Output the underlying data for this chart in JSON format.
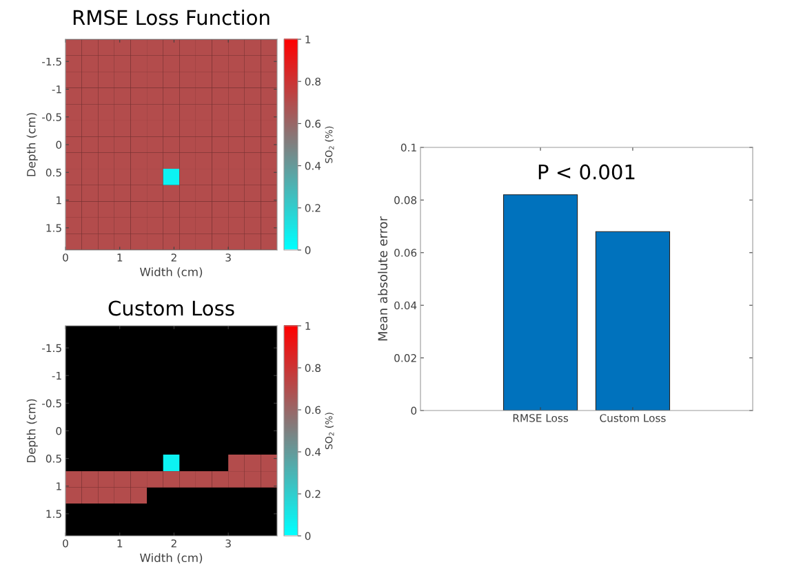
{
  "chart_data": [
    {
      "type": "heatmap",
      "title": "RMSE Loss Function",
      "xlabel": "Width (cm)",
      "ylabel": "Depth (cm)",
      "clabel": "SO$_{2}$ (%)",
      "xlim": [
        0,
        3.9
      ],
      "xticks": [
        0,
        1,
        2,
        3
      ],
      "ylim": [
        1.9,
        -1.9
      ],
      "yticks": [
        -1.5,
        -1,
        -0.5,
        0,
        0.5,
        1,
        1.5
      ],
      "clim": [
        0,
        1
      ],
      "cticks": [
        0,
        0.2,
        0.4,
        0.6,
        0.8,
        1
      ],
      "colors": [
        "#00ffff",
        "#808080",
        "#ff0000"
      ],
      "x": [
        0.15,
        0.45,
        0.75,
        1.05,
        1.35,
        1.65,
        1.95,
        2.25,
        2.55,
        2.85,
        3.15,
        3.45,
        3.75
      ],
      "y": [
        -1.75,
        -1.46,
        -1.17,
        -0.88,
        -0.58,
        -0.29,
        0,
        0.29,
        0.58,
        0.88,
        1.17,
        1.46,
        1.75
      ],
      "cells": [
        [
          0.7,
          0.7,
          0.7,
          0.7,
          0.7,
          0.7,
          0.7,
          0.7,
          0.7,
          0.7,
          0.7,
          0.7,
          0.7
        ],
        [
          0.7,
          0.7,
          0.7,
          0.7,
          0.7,
          0.7,
          0.7,
          0.7,
          0.7,
          0.7,
          0.7,
          0.7,
          0.7
        ],
        [
          0.7,
          0.7,
          0.7,
          0.7,
          0.7,
          0.7,
          0.7,
          0.7,
          0.7,
          0.7,
          0.7,
          0.7,
          0.7
        ],
        [
          0.7,
          0.7,
          0.7,
          0.7,
          0.7,
          0.7,
          0.7,
          0.7,
          0.7,
          0.7,
          0.7,
          0.7,
          0.7
        ],
        [
          0.7,
          0.7,
          0.7,
          0.7,
          0.7,
          0.7,
          0.7,
          0.7,
          0.7,
          0.7,
          0.7,
          0.7,
          0.7
        ],
        [
          0.7,
          0.7,
          0.7,
          0.7,
          0.7,
          0.7,
          0.7,
          0.7,
          0.7,
          0.7,
          0.7,
          0.7,
          0.7
        ],
        [
          0.7,
          0.7,
          0.7,
          0.7,
          0.7,
          0.7,
          0.7,
          0.7,
          0.7,
          0.7,
          0.7,
          0.7,
          0.7
        ],
        [
          0.7,
          0.7,
          0.7,
          0.7,
          0.7,
          0.7,
          0.7,
          0.7,
          0.7,
          0.7,
          0.7,
          0.7,
          0.7
        ],
        [
          0.7,
          0.7,
          0.7,
          0.7,
          0.7,
          0.7,
          0.05,
          0.7,
          0.7,
          0.7,
          0.7,
          0.7,
          0.7
        ],
        [
          0.7,
          0.7,
          0.7,
          0.7,
          0.7,
          0.7,
          0.7,
          0.7,
          0.7,
          0.7,
          0.7,
          0.7,
          0.7
        ],
        [
          0.7,
          0.7,
          0.7,
          0.7,
          0.7,
          0.7,
          0.7,
          0.7,
          0.7,
          0.7,
          0.7,
          0.7,
          0.7
        ],
        [
          0.7,
          0.7,
          0.7,
          0.7,
          0.7,
          0.7,
          0.7,
          0.7,
          0.7,
          0.7,
          0.7,
          0.7,
          0.7
        ],
        [
          0.7,
          0.7,
          0.7,
          0.7,
          0.7,
          0.7,
          0.7,
          0.7,
          0.7,
          0.7,
          0.7,
          0.7,
          0.7
        ]
      ]
    },
    {
      "type": "heatmap",
      "title": "Custom Loss",
      "xlabel": "Width (cm)",
      "ylabel": "Depth (cm)",
      "clabel": "SO$_{2}$ (%)",
      "xlim": [
        0,
        3.9
      ],
      "xticks": [
        0,
        1,
        2,
        3
      ],
      "ylim": [
        1.9,
        -1.9
      ],
      "yticks": [
        -1.5,
        -1,
        -0.5,
        0,
        0.5,
        1,
        1.5
      ],
      "clim": [
        0,
        1
      ],
      "cticks": [
        0,
        0.2,
        0.4,
        0.6,
        0.8,
        1
      ],
      "colors": [
        "#00ffff",
        "#808080",
        "#ff0000"
      ],
      "x": [
        0.15,
        0.45,
        0.75,
        1.05,
        1.35,
        1.65,
        1.95,
        2.25,
        2.55,
        2.85,
        3.15,
        3.45,
        3.75
      ],
      "y": [
        0.58,
        0.88,
        1.17
      ],
      "cells": [
        [
          null,
          null,
          null,
          null,
          null,
          null,
          0.05,
          null,
          null,
          null,
          0.7,
          0.7,
          0.7
        ],
        [
          0.7,
          0.7,
          0.7,
          0.7,
          0.7,
          0.7,
          0.7,
          0.7,
          0.7,
          0.7,
          0.7,
          0.7,
          0.7
        ],
        [
          0.7,
          0.7,
          0.7,
          0.7,
          0.7,
          null,
          null,
          null,
          null,
          null,
          null,
          null,
          null
        ]
      ]
    },
    {
      "type": "bar",
      "ylabel": "Mean absolute error",
      "categories": [
        "RMSE Loss",
        "Custom Loss"
      ],
      "values": [
        0.082,
        0.068
      ],
      "color": "#0072bd",
      "ylim": [
        0,
        0.1
      ],
      "yticks": [
        0,
        0.02,
        0.04,
        0.06,
        0.08,
        0.1
      ],
      "annotations": [
        "P < 0.001"
      ]
    }
  ]
}
